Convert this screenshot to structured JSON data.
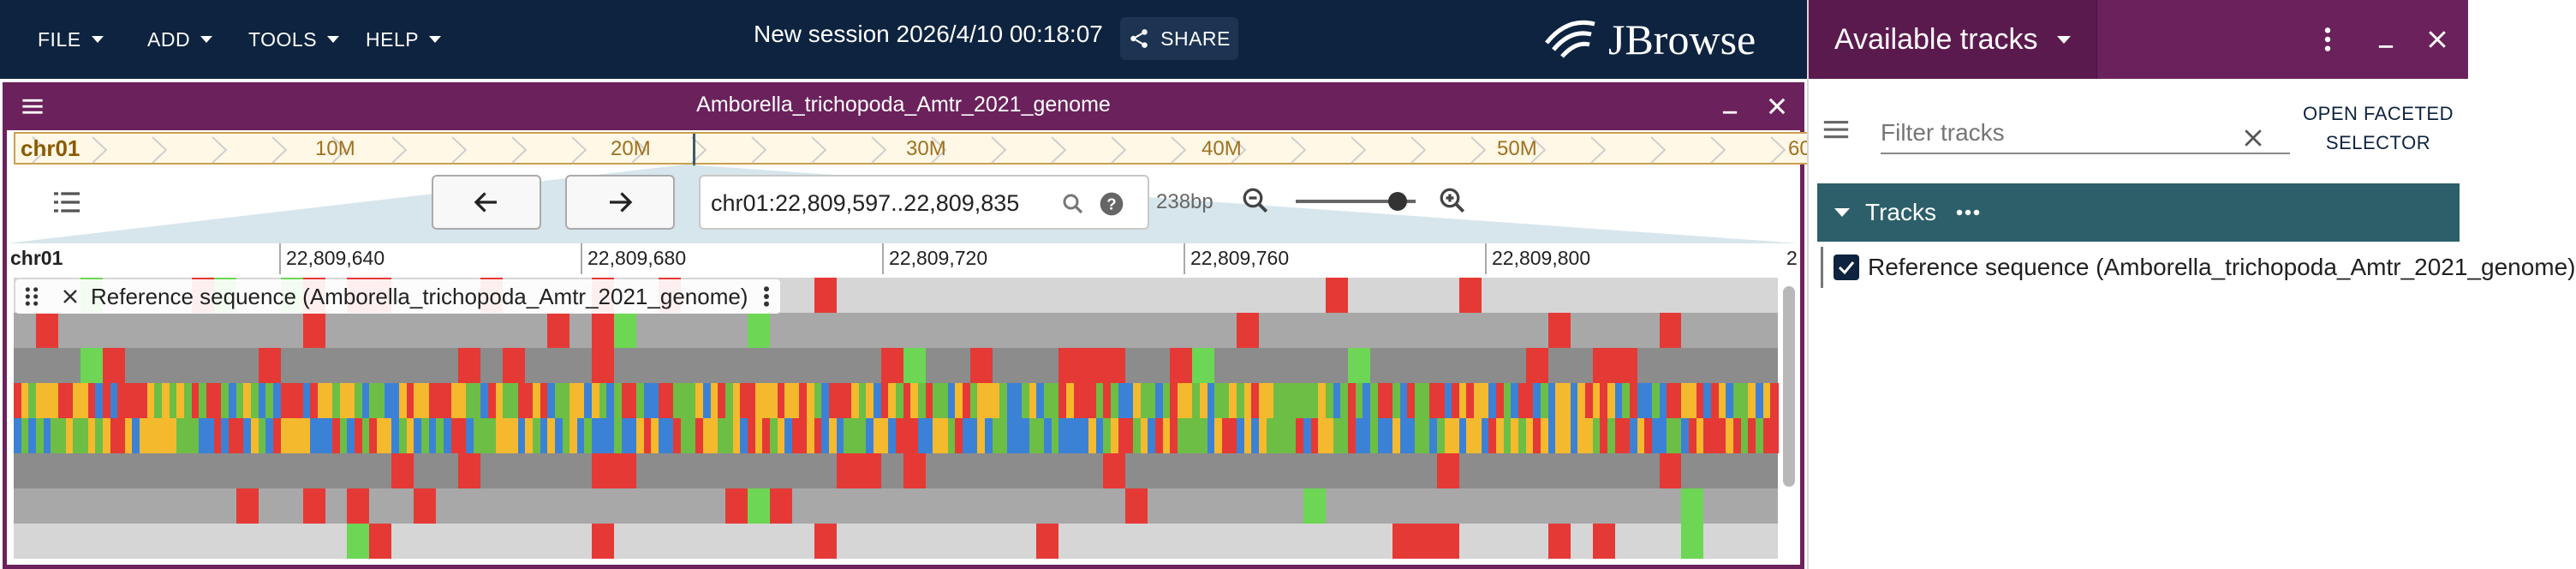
{
  "topbar": {
    "menus": [
      {
        "label": "FILE"
      },
      {
        "label": "ADD"
      },
      {
        "label": "TOOLS"
      },
      {
        "label": "HELP"
      }
    ],
    "session_title": "New session 2026/4/10 00:18:07",
    "share_label": "SHARE",
    "logo_text": "JBrowse"
  },
  "view": {
    "title": "Amborella_trichopoda_Amtr_2021_genome",
    "overview": {
      "refname": "chr01",
      "ticks": [
        "10M",
        "20M",
        "30M",
        "40M",
        "50M",
        "60"
      ]
    },
    "location": "chr01:22,809,597..22,809,835",
    "bp_label": "238bp",
    "zoom_level": 0.85,
    "scale": {
      "refname": "chr01",
      "ticks": [
        "22,809,640",
        "22,809,680",
        "22,809,720",
        "22,809,760",
        "22,809,800",
        "2"
      ]
    },
    "track_label": "Reference sequence (Amborella_trichopoda_Amtr_2021_genome)"
  },
  "side_panel": {
    "title": "Available tracks",
    "filter_placeholder": "Filter tracks",
    "faceted_label_1": "OPEN FACETED",
    "faceted_label_2": "SELECTOR",
    "category_label": "Tracks",
    "track_item_label": "Reference sequence (Amborella_trichopoda_Amtr_2021_genome)",
    "track_item_checked": true
  },
  "colors": {
    "topbar": "#0d233f",
    "view_header": "#6b225c",
    "tracks_header": "#2d5f6a",
    "base_A": "#6dbe45",
    "base_C": "#3b82d6",
    "base_G": "#f5b92e",
    "base_T": "#e53935",
    "stop_codon": "#e53935",
    "start_codon": "#6dd655"
  }
}
